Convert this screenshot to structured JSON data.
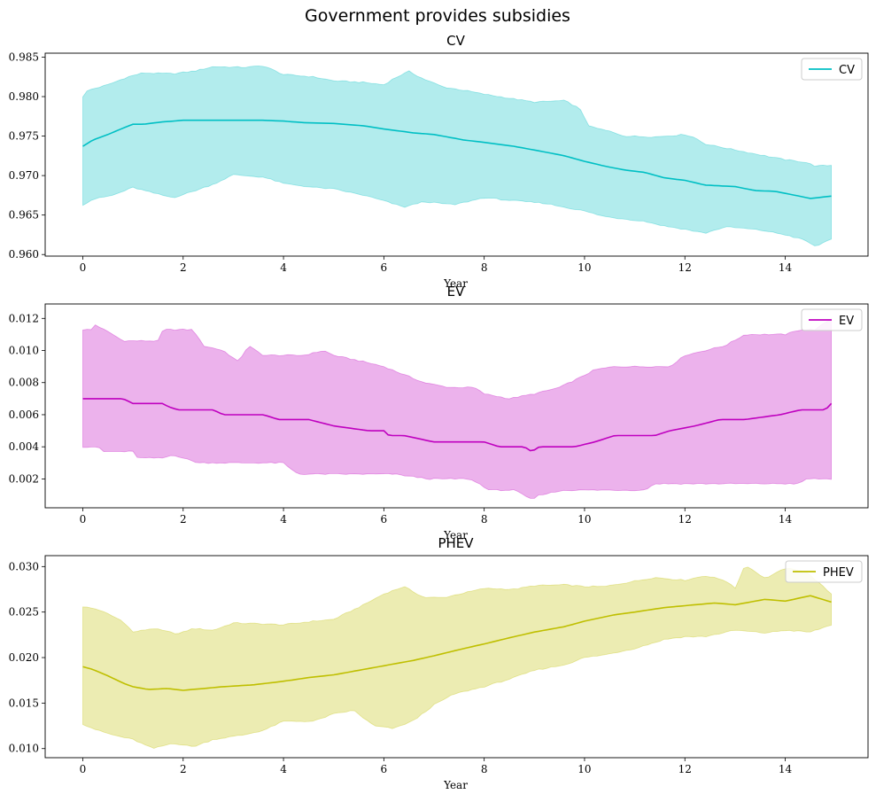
{
  "figure": {
    "title": "Government provides subsidies"
  },
  "chart_data": [
    {
      "type": "line",
      "title": "CV",
      "xlabel": "Year",
      "ylabel": "",
      "legend": {
        "label": "CV",
        "placement": "top-right"
      },
      "color": "#00bfc4",
      "fill_color": "#00bfc4",
      "xlim": [
        -0.75,
        15.65
      ],
      "ylim": [
        0.9598,
        0.9855
      ],
      "xticks": [
        0,
        2,
        4,
        6,
        8,
        10,
        12,
        14
      ],
      "yticks": [
        0.96,
        0.965,
        0.97,
        0.975,
        0.98,
        0.985
      ],
      "ytick_decimals": 3,
      "grid": false,
      "x_start": 0,
      "x_end": 14.92,
      "n_points": 180,
      "mean": [
        [
          0,
          0.9737
        ],
        [
          0.2,
          0.9745
        ],
        [
          0.5,
          0.9752
        ],
        [
          0.8,
          0.976
        ],
        [
          1.0,
          0.9765
        ],
        [
          1.2,
          0.9765
        ],
        [
          1.6,
          0.9768
        ],
        [
          2.0,
          0.977
        ],
        [
          3.6,
          0.977
        ],
        [
          4.0,
          0.9769
        ],
        [
          4.4,
          0.9767
        ],
        [
          5.0,
          0.9766
        ],
        [
          5.6,
          0.9763
        ],
        [
          6.0,
          0.9759
        ],
        [
          6.6,
          0.9754
        ],
        [
          7.0,
          0.9752
        ],
        [
          7.6,
          0.9745
        ],
        [
          8.0,
          0.9742
        ],
        [
          8.6,
          0.9737
        ],
        [
          9.2,
          0.973
        ],
        [
          9.6,
          0.9725
        ],
        [
          10.0,
          0.9718
        ],
        [
          10.4,
          0.9712
        ],
        [
          10.8,
          0.9707
        ],
        [
          11.2,
          0.9704
        ],
        [
          11.6,
          0.9697
        ],
        [
          12.0,
          0.9694
        ],
        [
          12.4,
          0.9688
        ],
        [
          13.0,
          0.9686
        ],
        [
          13.4,
          0.9681
        ],
        [
          13.8,
          0.968
        ],
        [
          14.2,
          0.9675
        ],
        [
          14.5,
          0.9671
        ],
        [
          14.92,
          0.9674
        ]
      ],
      "upper": [
        [
          0,
          0.98
        ],
        [
          0.1,
          0.9808
        ],
        [
          0.5,
          0.9815
        ],
        [
          0.9,
          0.9825
        ],
        [
          1.2,
          0.983
        ],
        [
          1.8,
          0.9829
        ],
        [
          2.2,
          0.9832
        ],
        [
          2.6,
          0.9838
        ],
        [
          3.2,
          0.9837
        ],
        [
          3.6,
          0.9839
        ],
        [
          4.0,
          0.9828
        ],
        [
          4.6,
          0.9825
        ],
        [
          5.0,
          0.982
        ],
        [
          5.6,
          0.9818
        ],
        [
          6.0,
          0.9815
        ],
        [
          6.2,
          0.9823
        ],
        [
          6.5,
          0.9832
        ],
        [
          6.8,
          0.9822
        ],
        [
          7.2,
          0.9812
        ],
        [
          7.6,
          0.9808
        ],
        [
          8.0,
          0.9803
        ],
        [
          8.6,
          0.9797
        ],
        [
          9.0,
          0.9793
        ],
        [
          9.6,
          0.9795
        ],
        [
          9.9,
          0.9785
        ],
        [
          10.1,
          0.9762
        ],
        [
          10.5,
          0.9756
        ],
        [
          10.8,
          0.975
        ],
        [
          11.4,
          0.9749
        ],
        [
          12.0,
          0.9752
        ],
        [
          12.2,
          0.9748
        ],
        [
          12.4,
          0.974
        ],
        [
          12.8,
          0.9735
        ],
        [
          13.2,
          0.973
        ],
        [
          13.6,
          0.9725
        ],
        [
          14.0,
          0.972
        ],
        [
          14.4,
          0.9717
        ],
        [
          14.6,
          0.9712
        ],
        [
          14.92,
          0.9713
        ]
      ],
      "lower": [
        [
          0,
          0.9663
        ],
        [
          0.2,
          0.967
        ],
        [
          0.6,
          0.9675
        ],
        [
          1.0,
          0.9685
        ],
        [
          1.4,
          0.9678
        ],
        [
          1.8,
          0.9672
        ],
        [
          2.2,
          0.968
        ],
        [
          2.6,
          0.9689
        ],
        [
          3.0,
          0.9701
        ],
        [
          3.6,
          0.9698
        ],
        [
          4.0,
          0.969
        ],
        [
          4.6,
          0.9685
        ],
        [
          5.0,
          0.9683
        ],
        [
          5.6,
          0.9675
        ],
        [
          6.0,
          0.9668
        ],
        [
          6.4,
          0.966
        ],
        [
          6.8,
          0.9667
        ],
        [
          7.4,
          0.9663
        ],
        [
          8.0,
          0.9672
        ],
        [
          8.6,
          0.9668
        ],
        [
          9.2,
          0.9665
        ],
        [
          9.6,
          0.966
        ],
        [
          10.0,
          0.9655
        ],
        [
          10.4,
          0.9648
        ],
        [
          10.8,
          0.9645
        ],
        [
          11.2,
          0.9642
        ],
        [
          11.6,
          0.9636
        ],
        [
          12.0,
          0.9632
        ],
        [
          12.4,
          0.9627
        ],
        [
          12.8,
          0.9635
        ],
        [
          13.2,
          0.9633
        ],
        [
          13.6,
          0.963
        ],
        [
          14.0,
          0.9625
        ],
        [
          14.4,
          0.9618
        ],
        [
          14.6,
          0.961
        ],
        [
          14.92,
          0.962
        ]
      ]
    },
    {
      "type": "line",
      "title": "EV",
      "xlabel": "Year",
      "ylabel": "",
      "legend": {
        "label": "EV",
        "placement": "top-right"
      },
      "color": "#bf00bf",
      "fill_color": "#bf00bf",
      "xlim": [
        -0.75,
        15.65
      ],
      "ylim": [
        0.0002,
        0.0129
      ],
      "xticks": [
        0,
        2,
        4,
        6,
        8,
        10,
        12,
        14
      ],
      "yticks": [
        0.002,
        0.004,
        0.006,
        0.008,
        0.01,
        0.012
      ],
      "ytick_decimals": 3,
      "grid": false,
      "x_start": 0,
      "x_end": 14.92,
      "n_points": 180,
      "mean": [
        [
          0,
          0.007
        ],
        [
          0.8,
          0.007
        ],
        [
          1.0,
          0.0067
        ],
        [
          1.6,
          0.0067
        ],
        [
          1.7,
          0.0065
        ],
        [
          1.9,
          0.0063
        ],
        [
          2.6,
          0.0063
        ],
        [
          2.8,
          0.006
        ],
        [
          3.6,
          0.006
        ],
        [
          3.9,
          0.0057
        ],
        [
          4.5,
          0.0057
        ],
        [
          5.0,
          0.0053
        ],
        [
          5.7,
          0.005
        ],
        [
          6.0,
          0.005
        ],
        [
          6.1,
          0.0047
        ],
        [
          6.4,
          0.0047
        ],
        [
          7.0,
          0.0043
        ],
        [
          8.0,
          0.0043
        ],
        [
          8.3,
          0.004
        ],
        [
          8.8,
          0.004
        ],
        [
          8.95,
          0.0037
        ],
        [
          9.1,
          0.004
        ],
        [
          9.8,
          0.004
        ],
        [
          10.2,
          0.0043
        ],
        [
          10.6,
          0.0047
        ],
        [
          11.4,
          0.0047
        ],
        [
          11.7,
          0.005
        ],
        [
          12.2,
          0.0053
        ],
        [
          12.7,
          0.0057
        ],
        [
          13.2,
          0.0057
        ],
        [
          13.9,
          0.006
        ],
        [
          14.3,
          0.0063
        ],
        [
          14.8,
          0.0063
        ],
        [
          14.92,
          0.0067
        ]
      ],
      "upper": [
        [
          0,
          0.0113
        ],
        [
          0.2,
          0.0113
        ],
        [
          0.25,
          0.0116
        ],
        [
          0.6,
          0.011
        ],
        [
          0.8,
          0.0106
        ],
        [
          1.5,
          0.0106
        ],
        [
          1.6,
          0.0113
        ],
        [
          2.2,
          0.0113
        ],
        [
          2.4,
          0.0103
        ],
        [
          2.8,
          0.01
        ],
        [
          3.1,
          0.0093
        ],
        [
          3.3,
          0.0103
        ],
        [
          3.6,
          0.0097
        ],
        [
          4.0,
          0.0097
        ],
        [
          4.4,
          0.0097
        ],
        [
          4.8,
          0.01
        ],
        [
          5.0,
          0.0097
        ],
        [
          5.6,
          0.0093
        ],
        [
          6.0,
          0.009
        ],
        [
          6.4,
          0.0085
        ],
        [
          6.8,
          0.008
        ],
        [
          7.3,
          0.0077
        ],
        [
          7.8,
          0.0077
        ],
        [
          8.0,
          0.0073
        ],
        [
          8.5,
          0.007
        ],
        [
          9.0,
          0.0073
        ],
        [
          9.5,
          0.0077
        ],
        [
          9.9,
          0.0083
        ],
        [
          10.2,
          0.0088
        ],
        [
          10.6,
          0.009
        ],
        [
          11.2,
          0.009
        ],
        [
          11.7,
          0.009
        ],
        [
          12.0,
          0.0097
        ],
        [
          12.4,
          0.01
        ],
        [
          12.8,
          0.0103
        ],
        [
          13.2,
          0.011
        ],
        [
          14.0,
          0.011
        ],
        [
          14.3,
          0.0113
        ],
        [
          14.6,
          0.0113
        ],
        [
          14.92,
          0.012
        ]
      ],
      "lower": [
        [
          0,
          0.004
        ],
        [
          0.3,
          0.004
        ],
        [
          0.4,
          0.0037
        ],
        [
          1.0,
          0.0037
        ],
        [
          1.1,
          0.0033
        ],
        [
          1.6,
          0.0033
        ],
        [
          1.8,
          0.0035
        ],
        [
          2.0,
          0.0033
        ],
        [
          2.3,
          0.003
        ],
        [
          4.0,
          0.003
        ],
        [
          4.1,
          0.0027
        ],
        [
          4.3,
          0.0023
        ],
        [
          5.0,
          0.0023
        ],
        [
          6.2,
          0.0023
        ],
        [
          6.9,
          0.002
        ],
        [
          7.7,
          0.002
        ],
        [
          7.9,
          0.0017
        ],
        [
          8.1,
          0.0013
        ],
        [
          8.6,
          0.0013
        ],
        [
          8.95,
          0.0007
        ],
        [
          9.1,
          0.001
        ],
        [
          9.6,
          0.0013
        ],
        [
          11.0,
          0.0013
        ],
        [
          11.2,
          0.0013
        ],
        [
          11.4,
          0.0017
        ],
        [
          13.0,
          0.0017
        ],
        [
          14.3,
          0.0017
        ],
        [
          14.4,
          0.002
        ],
        [
          14.92,
          0.002
        ]
      ]
    },
    {
      "type": "line",
      "title": "PHEV",
      "xlabel": "Year",
      "ylabel": "",
      "legend": {
        "label": "PHEV",
        "placement": "top-right"
      },
      "color": "#bfbf00",
      "fill_color": "#bfbf00",
      "xlim": [
        -0.75,
        15.65
      ],
      "ylim": [
        0.009,
        0.0312
      ],
      "xticks": [
        0,
        2,
        4,
        6,
        8,
        10,
        12,
        14
      ],
      "yticks": [
        0.01,
        0.015,
        0.02,
        0.025,
        0.03
      ],
      "ytick_decimals": 3,
      "grid": false,
      "x_start": 0,
      "x_end": 14.92,
      "n_points": 180,
      "mean": [
        [
          0,
          0.019
        ],
        [
          0.2,
          0.0187
        ],
        [
          0.5,
          0.018
        ],
        [
          0.8,
          0.0172
        ],
        [
          1.0,
          0.0168
        ],
        [
          1.3,
          0.0165
        ],
        [
          1.7,
          0.0166
        ],
        [
          2.0,
          0.0164
        ],
        [
          2.4,
          0.0166
        ],
        [
          2.8,
          0.0168
        ],
        [
          3.4,
          0.017
        ],
        [
          4.0,
          0.0174
        ],
        [
          4.5,
          0.0178
        ],
        [
          5.0,
          0.0181
        ],
        [
          5.6,
          0.0187
        ],
        [
          6.0,
          0.0191
        ],
        [
          6.6,
          0.0197
        ],
        [
          7.0,
          0.0202
        ],
        [
          7.6,
          0.021
        ],
        [
          8.0,
          0.0215
        ],
        [
          8.6,
          0.0223
        ],
        [
          9.0,
          0.0228
        ],
        [
          9.6,
          0.0234
        ],
        [
          10.0,
          0.024
        ],
        [
          10.6,
          0.0247
        ],
        [
          11.0,
          0.025
        ],
        [
          11.6,
          0.0255
        ],
        [
          12.0,
          0.0257
        ],
        [
          12.6,
          0.026
        ],
        [
          13.0,
          0.0258
        ],
        [
          13.6,
          0.0264
        ],
        [
          14.0,
          0.0262
        ],
        [
          14.5,
          0.0268
        ],
        [
          14.92,
          0.0261
        ]
      ],
      "upper": [
        [
          0,
          0.0256
        ],
        [
          0.3,
          0.0253
        ],
        [
          0.5,
          0.0248
        ],
        [
          0.8,
          0.024
        ],
        [
          1.0,
          0.0228
        ],
        [
          1.4,
          0.0232
        ],
        [
          1.9,
          0.0226
        ],
        [
          2.2,
          0.0232
        ],
        [
          2.6,
          0.023
        ],
        [
          3.0,
          0.0238
        ],
        [
          3.6,
          0.0237
        ],
        [
          4.0,
          0.0236
        ],
        [
          4.6,
          0.024
        ],
        [
          5.0,
          0.0242
        ],
        [
          5.6,
          0.0258
        ],
        [
          6.0,
          0.027
        ],
        [
          6.4,
          0.0278
        ],
        [
          6.8,
          0.0266
        ],
        [
          7.2,
          0.0266
        ],
        [
          7.6,
          0.0271
        ],
        [
          8.0,
          0.0276
        ],
        [
          8.6,
          0.0275
        ],
        [
          9.0,
          0.0279
        ],
        [
          9.6,
          0.028
        ],
        [
          10.0,
          0.0278
        ],
        [
          10.4,
          0.0278
        ],
        [
          10.8,
          0.0282
        ],
        [
          11.4,
          0.0288
        ],
        [
          12.0,
          0.0285
        ],
        [
          12.4,
          0.029
        ],
        [
          12.8,
          0.0285
        ],
        [
          13.0,
          0.0276
        ],
        [
          13.2,
          0.0302
        ],
        [
          13.6,
          0.0287
        ],
        [
          14.0,
          0.0298
        ],
        [
          14.4,
          0.0295
        ],
        [
          14.92,
          0.027
        ]
      ],
      "lower": [
        [
          0,
          0.0127
        ],
        [
          0.3,
          0.012
        ],
        [
          0.6,
          0.0115
        ],
        [
          1.0,
          0.011
        ],
        [
          1.4,
          0.01
        ],
        [
          1.8,
          0.0106
        ],
        [
          2.2,
          0.0102
        ],
        [
          2.6,
          0.011
        ],
        [
          3.2,
          0.0115
        ],
        [
          3.6,
          0.012
        ],
        [
          4.0,
          0.013
        ],
        [
          4.6,
          0.013
        ],
        [
          5.0,
          0.0138
        ],
        [
          5.4,
          0.0142
        ],
        [
          5.8,
          0.0125
        ],
        [
          6.2,
          0.0122
        ],
        [
          6.6,
          0.0131
        ],
        [
          7.0,
          0.0148
        ],
        [
          7.4,
          0.016
        ],
        [
          8.0,
          0.0168
        ],
        [
          8.6,
          0.0178
        ],
        [
          9.0,
          0.0186
        ],
        [
          9.6,
          0.0192
        ],
        [
          10.0,
          0.02
        ],
        [
          10.4,
          0.0203
        ],
        [
          11.0,
          0.021
        ],
        [
          11.6,
          0.022
        ],
        [
          12.0,
          0.0223
        ],
        [
          12.4,
          0.0223
        ],
        [
          13.0,
          0.023
        ],
        [
          13.6,
          0.0227
        ],
        [
          14.0,
          0.023
        ],
        [
          14.5,
          0.0228
        ],
        [
          14.92,
          0.0236
        ]
      ]
    }
  ]
}
